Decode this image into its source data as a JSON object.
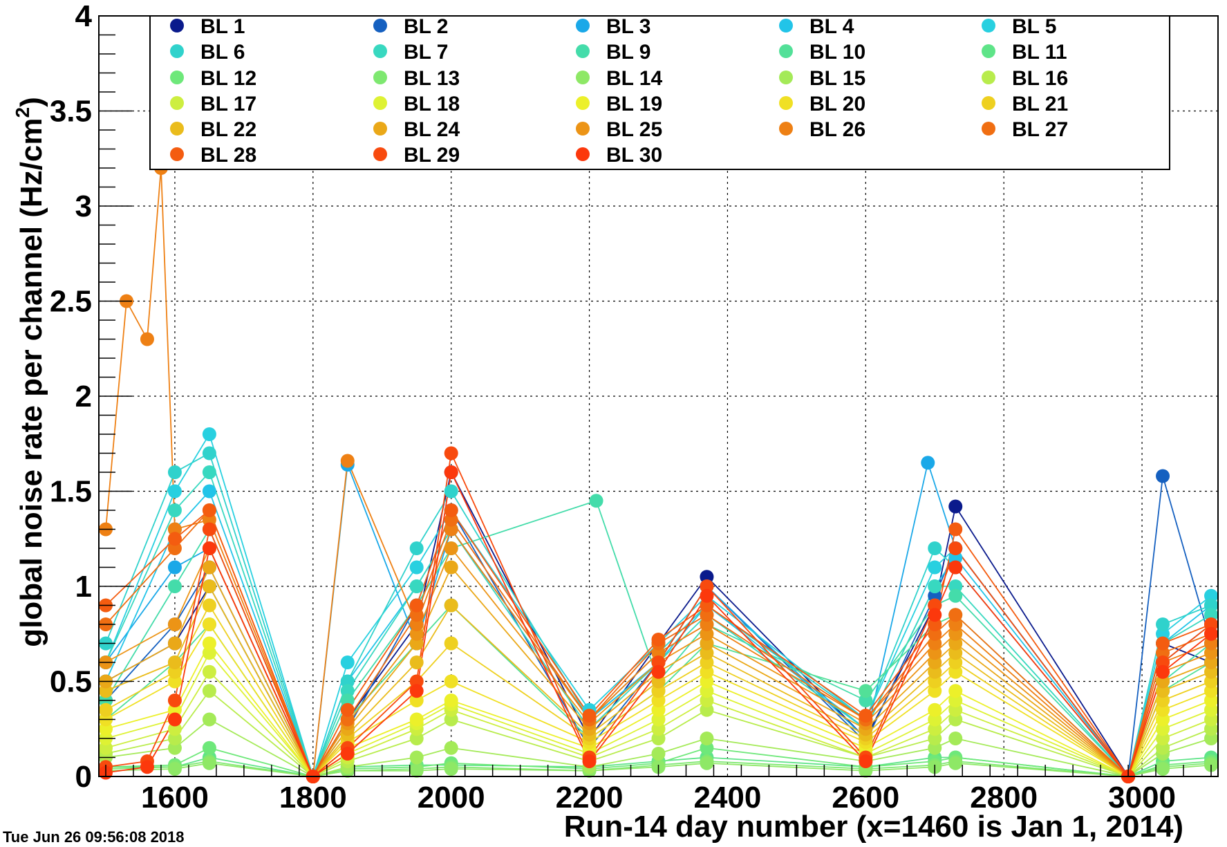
{
  "timestamp": "Tue Jun 26 09:56:08 2018",
  "chart_data": {
    "type": "scatter",
    "title": "",
    "xlabel": "Run-14 day number (x=1460 is Jan 1, 2014)",
    "ylabel_main": "global noise rate per channel (Hz/cm",
    "ylabel_sup": "2",
    "ylabel_close": ")",
    "xlim": [
      1490,
      3110
    ],
    "ylim": [
      0,
      4
    ],
    "x_ticks": [
      1600,
      1800,
      2000,
      2200,
      2400,
      2600,
      2800,
      3000
    ],
    "y_ticks": [
      {
        "v": 0,
        "label": "0"
      },
      {
        "v": 0.5,
        "label": "0.5"
      },
      {
        "v": 1,
        "label": "1"
      },
      {
        "v": 1.5,
        "label": "1.5"
      },
      {
        "v": 2,
        "label": "2"
      },
      {
        "v": 2.5,
        "label": "2.5"
      },
      {
        "v": 3,
        "label": "3"
      },
      {
        "v": 3.5,
        "label": "3.5"
      },
      {
        "v": 4,
        "label": "4"
      }
    ],
    "grid": true,
    "legend_position": "top",
    "series": [
      {
        "name": "BL 1",
        "color": "#0a1a8c",
        "x": [
          1500,
          1600,
          1650,
          1800,
          1850,
          1950,
          2000,
          2200,
          2300,
          2370,
          2600,
          2700,
          2730,
          2980,
          3030,
          3100
        ],
        "y": [
          0.5,
          0.7,
          1.0,
          0,
          0.3,
          0.8,
          1.6,
          0.2,
          0.7,
          1.05,
          0.2,
          0.9,
          1.42,
          0,
          0.7,
          0.6
        ]
      },
      {
        "name": "BL 2",
        "color": "#1560c0",
        "x": [
          1500,
          1600,
          1650,
          1800,
          1850,
          1950,
          2000,
          2200,
          2300,
          2370,
          2600,
          2700,
          2730,
          2980,
          3030,
          3100
        ],
        "y": [
          0.4,
          0.8,
          1.1,
          0,
          0.25,
          0.9,
          1.4,
          0.15,
          0.6,
          1.0,
          0.18,
          0.95,
          1.2,
          0,
          1.58,
          0.7
        ]
      },
      {
        "name": "BL 3",
        "color": "#1aa8e8",
        "x": [
          1500,
          1600,
          1650,
          1800,
          1850,
          1950,
          2000,
          2200,
          2300,
          2370,
          2600,
          2690,
          2730,
          2980,
          3030,
          3100
        ],
        "y": [
          0.6,
          1.1,
          1.2,
          0,
          1.64,
          0.7,
          1.3,
          0.3,
          0.6,
          1.0,
          0.2,
          1.65,
          1.2,
          0,
          0.6,
          0.8
        ]
      },
      {
        "name": "BL 4",
        "color": "#22c4e8",
        "x": [
          1500,
          1600,
          1650,
          1800,
          1850,
          1950,
          2000,
          2200,
          2300,
          2370,
          2600,
          2700,
          2730,
          2980,
          3030,
          3100
        ],
        "y": [
          0.5,
          1.3,
          1.5,
          0,
          0.5,
          1.0,
          1.3,
          0.3,
          0.6,
          0.9,
          0.25,
          1.0,
          1.15,
          0,
          0.7,
          0.9
        ]
      },
      {
        "name": "BL 5",
        "color": "#28d0e0",
        "x": [
          1500,
          1600,
          1650,
          1800,
          1850,
          1950,
          2000,
          2200,
          2300,
          2370,
          2600,
          2700,
          2730,
          2980,
          3030,
          3100
        ],
        "y": [
          0.6,
          1.5,
          1.8,
          0,
          0.6,
          1.1,
          1.4,
          0.35,
          0.7,
          0.95,
          0.3,
          1.1,
          1.2,
          0,
          0.75,
          0.95
        ]
      },
      {
        "name": "BL 6",
        "color": "#30d2cc",
        "x": [
          1500,
          1600,
          1650,
          1800,
          1850,
          1950,
          2000,
          2200,
          2300,
          2370,
          2600,
          2700,
          2730,
          2980,
          3030,
          3100
        ],
        "y": [
          0.7,
          1.6,
          1.7,
          0,
          0.5,
          1.2,
          1.5,
          0.3,
          0.65,
          0.9,
          0.3,
          1.2,
          1.1,
          0,
          0.8,
          0.9
        ]
      },
      {
        "name": "BL 7",
        "color": "#38d8c0",
        "x": [
          1500,
          1600,
          1650,
          1800,
          1850,
          1950,
          2000,
          2200,
          2300,
          2370,
          2600,
          2700,
          2730,
          2980,
          3030,
          3100
        ],
        "y": [
          0.6,
          1.4,
          1.6,
          0,
          0.45,
          1.0,
          1.3,
          0.25,
          0.6,
          0.85,
          0.25,
          1.0,
          1.0,
          0,
          0.7,
          0.85
        ]
      },
      {
        "name": "BL 9",
        "color": "#44dcaa",
        "x": [
          1500,
          1600,
          1650,
          1800,
          1850,
          1950,
          2000,
          2210,
          2300,
          2370,
          2600,
          2700,
          2730,
          2980,
          3030,
          3100
        ],
        "y": [
          0.4,
          1.0,
          1.3,
          0,
          0.4,
          0.9,
          1.2,
          1.45,
          0.5,
          0.8,
          0.4,
          0.9,
          0.95,
          0,
          0.5,
          0.7
        ]
      },
      {
        "name": "BL 10",
        "color": "#52e098",
        "x": [
          1500,
          1600,
          1650,
          1800,
          1850,
          1950,
          2000,
          2200,
          2300,
          2370,
          2600,
          2700,
          2730,
          2980,
          3030,
          3100
        ],
        "y": [
          0.3,
          0.6,
          0.8,
          0,
          0.3,
          0.7,
          0.9,
          0.2,
          0.45,
          0.7,
          0.45,
          0.8,
          0.85,
          0,
          0.45,
          0.6
        ]
      },
      {
        "name": "BL 11",
        "color": "#5ee488",
        "x": [
          1500,
          1600,
          1650,
          1800,
          1850,
          1950,
          2000,
          2200,
          2300,
          2370,
          2600,
          2700,
          2730,
          2980,
          3030,
          3100
        ],
        "y": [
          0.05,
          0.05,
          0.1,
          0,
          0.05,
          0.06,
          0.06,
          0.05,
          0.08,
          0.1,
          0.05,
          0.1,
          0.1,
          0,
          0.08,
          0.1
        ]
      },
      {
        "name": "BL 12",
        "color": "#6ee87a",
        "x": [
          1500,
          1600,
          1650,
          1800,
          1850,
          1950,
          2000,
          2200,
          2300,
          2370,
          2600,
          2700,
          2730,
          2980,
          3030,
          3100
        ],
        "y": [
          0.05,
          0.06,
          0.15,
          0,
          0.04,
          0.05,
          0.07,
          0.04,
          0.07,
          0.15,
          0.05,
          0.08,
          0.1,
          0,
          0.06,
          0.08
        ]
      },
      {
        "name": "BL 13",
        "color": "#7ee870",
        "x": [
          1500,
          1600,
          1650,
          1800,
          1850,
          1950,
          2000,
          2200,
          2300,
          2370,
          2600,
          2700,
          2730,
          2980,
          3030,
          3100
        ],
        "y": [
          0.04,
          0.05,
          0.08,
          0,
          0.03,
          0.04,
          0.05,
          0.03,
          0.06,
          0.08,
          0.04,
          0.06,
          0.08,
          0,
          0.05,
          0.07
        ]
      },
      {
        "name": "BL 14",
        "color": "#8ee866",
        "x": [
          1500,
          1600,
          1650,
          1800,
          1850,
          1950,
          2000,
          2200,
          2300,
          2370,
          2600,
          2700,
          2730,
          2980,
          3030,
          3100
        ],
        "y": [
          0.03,
          0.04,
          0.07,
          0,
          0.03,
          0.03,
          0.04,
          0.03,
          0.05,
          0.07,
          0.03,
          0.05,
          0.07,
          0,
          0.04,
          0.06
        ]
      },
      {
        "name": "BL 15",
        "color": "#a4ea58",
        "x": [
          1500,
          1600,
          1650,
          1800,
          1850,
          1950,
          2000,
          2200,
          2300,
          2370,
          2600,
          2700,
          2730,
          2980,
          3030,
          3100
        ],
        "y": [
          0.1,
          0.15,
          0.3,
          0,
          0.05,
          0.1,
          0.15,
          0.05,
          0.12,
          0.2,
          0.08,
          0.15,
          0.2,
          0,
          0.12,
          0.2
        ]
      },
      {
        "name": "BL 16",
        "color": "#b8ec4c",
        "x": [
          1500,
          1600,
          1650,
          1800,
          1850,
          1950,
          2000,
          2200,
          2300,
          2370,
          2600,
          2700,
          2730,
          2980,
          3030,
          3100
        ],
        "y": [
          0.12,
          0.2,
          0.45,
          0,
          0.08,
          0.2,
          0.3,
          0.08,
          0.2,
          0.35,
          0.1,
          0.2,
          0.3,
          0,
          0.15,
          0.25
        ]
      },
      {
        "name": "BL 17",
        "color": "#cdee40",
        "x": [
          1500,
          1600,
          1650,
          1800,
          1850,
          1950,
          2000,
          2200,
          2300,
          2370,
          2600,
          2700,
          2730,
          2980,
          3030,
          3100
        ],
        "y": [
          0.15,
          0.25,
          0.55,
          0,
          0.1,
          0.25,
          0.35,
          0.1,
          0.25,
          0.4,
          0.1,
          0.25,
          0.35,
          0,
          0.2,
          0.3
        ]
      },
      {
        "name": "BL 18",
        "color": "#def234",
        "x": [
          1500,
          1600,
          1650,
          1800,
          1850,
          1950,
          2000,
          2200,
          2300,
          2370,
          2600,
          2700,
          2730,
          2980,
          3030,
          3100
        ],
        "y": [
          0.2,
          0.3,
          0.65,
          0,
          0.12,
          0.28,
          0.38,
          0.12,
          0.3,
          0.45,
          0.12,
          0.3,
          0.4,
          0,
          0.25,
          0.35
        ]
      },
      {
        "name": "BL 19",
        "color": "#ecf02a",
        "x": [
          1500,
          1600,
          1650,
          1800,
          1850,
          1950,
          2000,
          2200,
          2300,
          2370,
          2600,
          2700,
          2730,
          2980,
          3030,
          3100
        ],
        "y": [
          0.25,
          0.35,
          0.7,
          0,
          0.15,
          0.3,
          0.4,
          0.15,
          0.35,
          0.5,
          0.15,
          0.35,
          0.45,
          0,
          0.3,
          0.4
        ]
      },
      {
        "name": "BL 20",
        "color": "#f0e024",
        "x": [
          1500,
          1600,
          1650,
          1800,
          1850,
          1950,
          2000,
          2200,
          2300,
          2370,
          2600,
          2700,
          2730,
          2980,
          3030,
          3100
        ],
        "y": [
          0.3,
          0.5,
          0.8,
          0,
          0.18,
          0.4,
          0.5,
          0.18,
          0.4,
          0.55,
          0.18,
          0.45,
          0.55,
          0,
          0.35,
          0.45
        ]
      },
      {
        "name": "BL 21",
        "color": "#eed020",
        "x": [
          1500,
          1600,
          1650,
          1800,
          1850,
          1950,
          2000,
          2200,
          2300,
          2370,
          2600,
          2700,
          2730,
          2980,
          3030,
          3100
        ],
        "y": [
          0.35,
          0.55,
          0.9,
          0,
          0.2,
          0.5,
          0.7,
          0.2,
          0.45,
          0.6,
          0.2,
          0.5,
          0.6,
          0,
          0.4,
          0.5
        ]
      },
      {
        "name": "BL 22",
        "color": "#eabc1c",
        "x": [
          1500,
          1600,
          1650,
          1800,
          1850,
          1950,
          2000,
          2200,
          2300,
          2370,
          2600,
          2700,
          2730,
          2980,
          3030,
          3100
        ],
        "y": [
          0.45,
          0.6,
          1.0,
          0,
          0.22,
          0.6,
          0.9,
          0.22,
          0.5,
          0.65,
          0.22,
          0.55,
          0.65,
          0,
          0.45,
          0.55
        ]
      },
      {
        "name": "BL 24",
        "color": "#eaa818",
        "x": [
          1500,
          1600,
          1650,
          1800,
          1850,
          1950,
          2000,
          2200,
          2300,
          2370,
          2600,
          2700,
          2730,
          2980,
          3030,
          3100
        ],
        "y": [
          0.5,
          0.7,
          1.1,
          0,
          0.25,
          0.7,
          1.1,
          0.25,
          0.55,
          0.7,
          0.25,
          0.6,
          0.7,
          0,
          0.5,
          0.6
        ]
      },
      {
        "name": "BL 25",
        "color": "#ec9416",
        "x": [
          1500,
          1600,
          1650,
          1800,
          1850,
          1950,
          2000,
          2200,
          2300,
          2370,
          2600,
          2700,
          2730,
          2980,
          3030,
          3100
        ],
        "y": [
          0.6,
          0.8,
          1.2,
          0,
          0.28,
          0.75,
          1.2,
          0.28,
          0.6,
          0.75,
          0.28,
          0.65,
          0.75,
          0,
          0.55,
          0.65
        ]
      },
      {
        "name": "BL 26",
        "color": "#ee8014",
        "x": [
          1500,
          1530,
          1560,
          1580,
          1600,
          1650,
          1800,
          1850,
          1950,
          2000,
          2200,
          2300,
          2370,
          2600,
          2700,
          2730,
          2980,
          3030,
          3100
        ],
        "y": [
          1.3,
          2.5,
          2.3,
          3.2,
          1.3,
          1.35,
          0,
          1.66,
          0.8,
          1.3,
          0.3,
          0.65,
          0.8,
          0.3,
          0.7,
          0.8,
          0,
          0.6,
          0.7
        ]
      },
      {
        "name": "BL 27",
        "color": "#f06e12",
        "x": [
          1500,
          1600,
          1650,
          1800,
          1850,
          1950,
          2000,
          2200,
          2300,
          2370,
          2600,
          2700,
          2730,
          2980,
          3030,
          3100
        ],
        "y": [
          0.8,
          1.2,
          1.4,
          0,
          0.3,
          0.85,
          1.35,
          0.3,
          0.7,
          0.85,
          0.3,
          0.75,
          0.85,
          0,
          0.65,
          0.75
        ]
      },
      {
        "name": "BL 28",
        "color": "#f45c10",
        "x": [
          1500,
          1600,
          1650,
          1800,
          1850,
          1950,
          2000,
          2200,
          2300,
          2370,
          2600,
          2700,
          2730,
          2980,
          3030,
          3100
        ],
        "y": [
          0.9,
          1.25,
          1.4,
          0,
          0.35,
          0.9,
          1.4,
          0.32,
          0.72,
          0.9,
          0.32,
          0.8,
          1.3,
          0,
          0.7,
          0.8
        ]
      },
      {
        "name": "BL 29",
        "color": "#f84a0e",
        "x": [
          1500,
          1560,
          1600,
          1650,
          1800,
          1850,
          1950,
          2000,
          2200,
          2300,
          2370,
          2600,
          2700,
          2730,
          2980,
          3030,
          3100
        ],
        "y": [
          0.05,
          0.08,
          0.4,
          1.3,
          0,
          0.15,
          0.5,
          1.7,
          0.1,
          0.6,
          1.0,
          0.1,
          0.9,
          1.2,
          0,
          0.6,
          0.8
        ]
      },
      {
        "name": "BL 30",
        "color": "#fc380c",
        "x": [
          1500,
          1560,
          1600,
          1650,
          1800,
          1850,
          1950,
          2000,
          2200,
          2300,
          2370,
          2600,
          2700,
          2730,
          2980,
          3030,
          3100
        ],
        "y": [
          0.02,
          0.05,
          0.3,
          1.2,
          0,
          0.12,
          0.45,
          1.6,
          0.08,
          0.55,
          0.95,
          0.08,
          0.85,
          1.1,
          0,
          0.55,
          0.75
        ]
      }
    ]
  }
}
